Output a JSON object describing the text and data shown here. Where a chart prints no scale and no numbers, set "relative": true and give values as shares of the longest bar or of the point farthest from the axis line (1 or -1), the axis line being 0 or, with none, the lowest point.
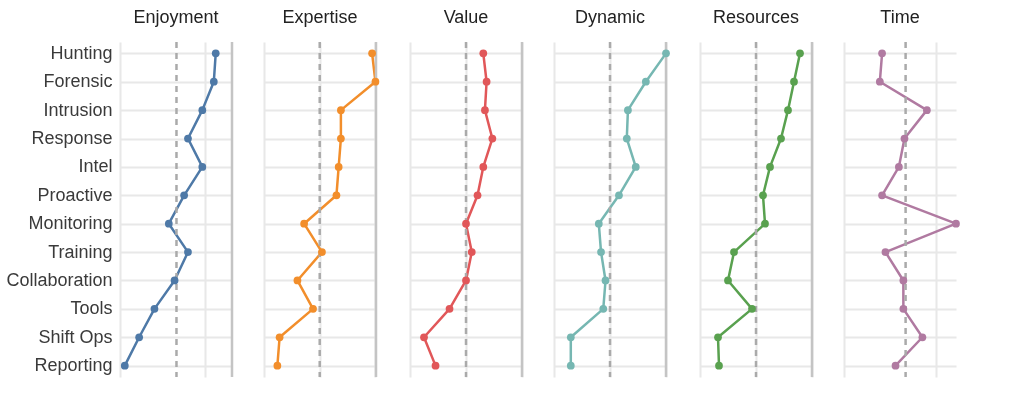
{
  "chart_data": [
    {
      "type": "line",
      "orientation": "horizontal",
      "relative": true,
      "title": "Enjoyment",
      "tick_labels": "y",
      "grid": true,
      "marker": "circle",
      "line_style": "solid",
      "categories": [
        "Hunting",
        "Forensic",
        "Intrusion",
        "Response",
        "Intel",
        "Proactive",
        "Monitoring",
        "Training",
        "Collaboration",
        "Tools",
        "Shift Ops",
        "Reporting"
      ],
      "series": [
        {
          "color": "#4e79a7",
          "values": [
            1,
            0.98,
            0.86,
            0.71,
            0.86,
            0.67,
            0.51,
            0.71,
            0.57,
            0.36,
            0.2,
            0.05
          ]
        }
      ],
      "ref_lines": [
        {
          "axis": "x",
          "value": 0.59,
          "line_style": "dashed",
          "color": "#aaaaaa"
        },
        {
          "axis": "x",
          "value": 1.17,
          "line_style": "solid",
          "color": "#c4c4c4"
        }
      ]
    },
    {
      "type": "line",
      "orientation": "horizontal",
      "relative": true,
      "title": "Expertise",
      "tick_labels": false,
      "grid": true,
      "marker": "circle",
      "line_style": "solid",
      "series": [
        {
          "color": "#f28e2b",
          "values": [
            0.97,
            1,
            0.69,
            0.69,
            0.67,
            0.65,
            0.36,
            0.52,
            0.3,
            0.44,
            0.14,
            0.12
          ]
        }
      ],
      "ref_lines": [
        {
          "axis": "x",
          "value": 0.5,
          "line_style": "dashed",
          "color": "#aaaaaa"
        },
        {
          "axis": "x",
          "value": 1.005,
          "line_style": "solid",
          "color": "#c4c4c4"
        }
      ]
    },
    {
      "type": "line",
      "orientation": "horizontal",
      "relative": true,
      "title": "Value",
      "tick_labels": false,
      "grid": true,
      "marker": "circle",
      "line_style": "solid",
      "series": [
        {
          "color": "#e15759",
          "values": [
            0.89,
            0.93,
            0.91,
            1,
            0.89,
            0.82,
            0.68,
            0.75,
            0.68,
            0.48,
            0.17,
            0.31
          ]
        }
      ],
      "ref_lines": [
        {
          "axis": "x",
          "value": 0.68,
          "line_style": "dashed",
          "color": "#aaaaaa"
        },
        {
          "axis": "x",
          "value": 1.36,
          "line_style": "solid",
          "color": "#c4c4c4"
        }
      ]
    },
    {
      "type": "line",
      "orientation": "horizontal",
      "relative": true,
      "title": "Dynamic",
      "tick_labels": false,
      "grid": true,
      "marker": "circle",
      "line_style": "solid",
      "series": [
        {
          "color": "#76b7b2",
          "values": [
            1,
            0.82,
            0.66,
            0.65,
            0.73,
            0.58,
            0.4,
            0.42,
            0.46,
            0.44,
            0.15,
            0.15
          ]
        }
      ],
      "ref_lines": [
        {
          "axis": "x",
          "value": 0.5,
          "line_style": "dashed",
          "color": "#aaaaaa"
        },
        {
          "axis": "x",
          "value": 1.0,
          "line_style": "solid",
          "color": "#c4c4c4"
        }
      ]
    },
    {
      "type": "line",
      "orientation": "horizontal",
      "relative": true,
      "title": "Resources",
      "tick_labels": false,
      "grid": true,
      "marker": "circle",
      "line_style": "solid",
      "series": [
        {
          "color": "#59a14f",
          "values": [
            1,
            0.94,
            0.88,
            0.81,
            0.7,
            0.63,
            0.65,
            0.34,
            0.28,
            0.52,
            0.18,
            0.19
          ]
        }
      ],
      "ref_lines": [
        {
          "axis": "x",
          "value": 0.56,
          "line_style": "dashed",
          "color": "#aaaaaa"
        },
        {
          "axis": "x",
          "value": 1.12,
          "line_style": "solid",
          "color": "#c4c4c4"
        }
      ]
    },
    {
      "type": "line",
      "orientation": "horizontal",
      "relative": true,
      "title": "Time",
      "tick_labels": false,
      "grid": true,
      "marker": "circle",
      "line_style": "solid",
      "series": [
        {
          "color": "#b07aa1",
          "values": [
            0.34,
            0.32,
            0.74,
            0.54,
            0.49,
            0.34,
            1,
            0.37,
            0.53,
            0.53,
            0.7,
            0.46
          ]
        }
      ],
      "ref_lines": [
        {
          "axis": "x",
          "value": 0.55,
          "line_style": "dashed",
          "color": "#aaaaaa"
        }
      ]
    }
  ]
}
